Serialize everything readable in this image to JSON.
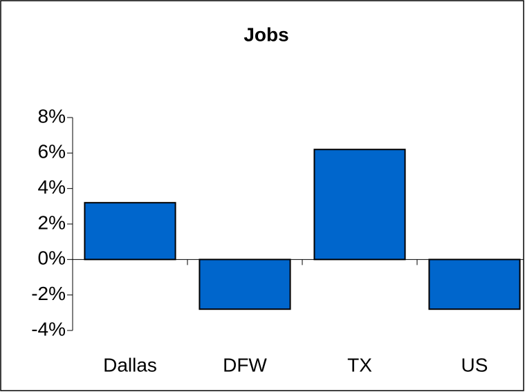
{
  "chart_data": {
    "type": "bar",
    "title": "Jobs",
    "categories": [
      "Dallas",
      "DFW",
      "TX",
      "US"
    ],
    "values": [
      3.2,
      -2.8,
      6.2,
      -2.8
    ],
    "color": "#0066cc",
    "ylim": [
      -4,
      8
    ],
    "yticks": [
      {
        "value": -4,
        "label": "-4%"
      },
      {
        "value": -2,
        "label": "-2%"
      },
      {
        "value": 0,
        "label": "0%"
      },
      {
        "value": 2,
        "label": "2%"
      },
      {
        "value": 4,
        "label": "4%"
      },
      {
        "value": 6,
        "label": "6%"
      },
      {
        "value": 8,
        "label": "8%"
      }
    ],
    "grid": false
  }
}
